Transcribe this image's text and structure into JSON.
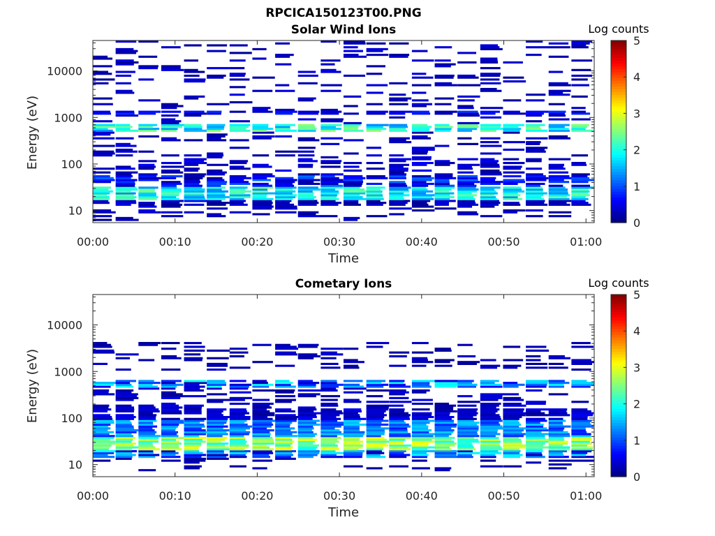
{
  "figure_title": "RPCICA150123T00.PNG",
  "chart_data": [
    {
      "type": "heatmap",
      "title": "Solar Wind Ions",
      "xlabel": "Time",
      "ylabel": "Energy (eV)",
      "x_scale": "time",
      "x_range": [
        "00:00",
        "01:01"
      ],
      "x_ticks": [
        "00:00",
        "00:10",
        "00:20",
        "00:30",
        "00:40",
        "00:50",
        "01:00"
      ],
      "y_scale": "log",
      "y_range": [
        5.5,
        45000
      ],
      "y_ticks": [
        10,
        100,
        1000,
        10000
      ],
      "y_tick_labels": [
        "10",
        "100",
        "1000",
        "10000"
      ],
      "colorbar": {
        "label": "Log counts",
        "range": [
          0,
          5
        ],
        "ticks": [
          "0",
          "1",
          "2",
          "3",
          "4",
          "5"
        ],
        "colormap": "jet"
      },
      "pattern": {
        "columns": 22,
        "background": [
          {
            "e_min": 7,
            "e_max": 43000,
            "prob": 0.22,
            "v_min": 0.1,
            "v_max": 0.5
          },
          {
            "e_min": 35,
            "e_max": 140,
            "prob": 0.35,
            "v_min": 0.1,
            "v_max": 0.6
          }
        ],
        "bands": [
          {
            "e_min": 1150,
            "e_max": 1400,
            "prob": 0.9,
            "v_min": 0.2,
            "v_max": 0.9
          },
          {
            "e_min": 480,
            "e_max": 700,
            "prob": 1.0,
            "v_min": 1.3,
            "v_max": 2.6
          },
          {
            "e_min": 33,
            "e_max": 60,
            "prob": 0.7,
            "v_min": 0.2,
            "v_max": 1.2
          },
          {
            "e_min": 17,
            "e_max": 33,
            "prob": 1.0,
            "v_min": 1.3,
            "v_max": 2.5
          },
          {
            "e_min": 13,
            "e_max": 17,
            "prob": 0.95,
            "v_min": 0.1,
            "v_max": 0.5
          },
          {
            "e_min": 6,
            "e_max": 13,
            "prob": 0.15,
            "v_min": 0.1,
            "v_max": 0.4
          }
        ]
      }
    },
    {
      "type": "heatmap",
      "title": "Cometary Ions",
      "xlabel": "Time",
      "ylabel": "Energy (eV)",
      "x_scale": "time",
      "x_range": [
        "00:00",
        "01:01"
      ],
      "x_ticks": [
        "00:00",
        "00:10",
        "00:20",
        "00:30",
        "00:40",
        "00:50",
        "01:00"
      ],
      "y_scale": "log",
      "y_range": [
        5.5,
        45000
      ],
      "y_ticks": [
        10,
        100,
        1000,
        10000
      ],
      "y_tick_labels": [
        "10",
        "100",
        "1000",
        "10000"
      ],
      "colorbar": {
        "label": "Log counts",
        "range": [
          0,
          5
        ],
        "ticks": [
          "0",
          "1",
          "2",
          "3",
          "4",
          "5"
        ],
        "colormap": "jet"
      },
      "pattern": {
        "columns": 22,
        "background": [
          {
            "e_min": 1100,
            "e_max": 4500,
            "prob": 0.35,
            "v_min": 0.1,
            "v_max": 0.4
          },
          {
            "e_min": 150,
            "e_max": 450,
            "prob": 0.4,
            "v_min": 0.1,
            "v_max": 0.5
          }
        ],
        "bands": [
          {
            "e_min": 450,
            "e_max": 650,
            "prob": 0.95,
            "v_min": 0.2,
            "v_max": 2.0
          },
          {
            "e_min": 95,
            "e_max": 160,
            "prob": 0.9,
            "v_min": 0.1,
            "v_max": 0.6
          },
          {
            "e_min": 40,
            "e_max": 95,
            "prob": 1.0,
            "v_min": 0.7,
            "v_max": 1.7
          },
          {
            "e_min": 20,
            "e_max": 40,
            "prob": 1.0,
            "v_min": 1.9,
            "v_max": 3.1
          },
          {
            "e_min": 14,
            "e_max": 20,
            "prob": 1.0,
            "v_min": 0.2,
            "v_max": 1.9
          },
          {
            "e_min": 7,
            "e_max": 14,
            "prob": 0.15,
            "v_min": 0.1,
            "v_max": 0.3
          }
        ]
      }
    }
  ]
}
